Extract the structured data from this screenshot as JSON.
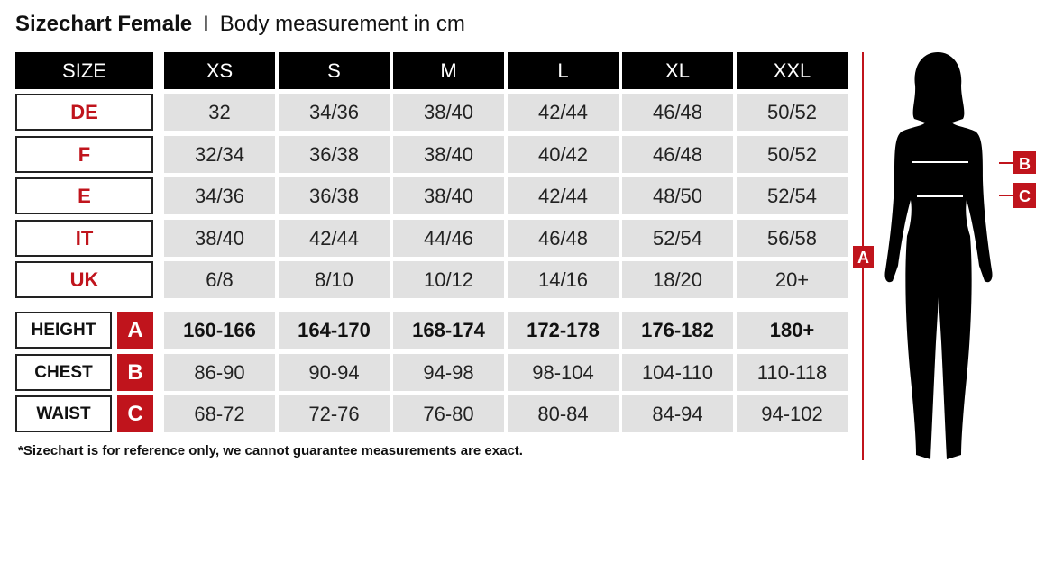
{
  "title": {
    "main": "Sizechart Female",
    "separator": "I",
    "subtitle": "Body measurement in cm"
  },
  "header": {
    "label": "SIZE",
    "sizes": [
      "XS",
      "S",
      "M",
      "L",
      "XL",
      "XXL"
    ]
  },
  "size_rows": [
    {
      "label": "DE",
      "values": [
        "32",
        "34/36",
        "38/40",
        "42/44",
        "46/48",
        "50/52"
      ]
    },
    {
      "label": "F",
      "values": [
        "32/34",
        "36/38",
        "38/40",
        "40/42",
        "46/48",
        "50/52"
      ]
    },
    {
      "label": "E",
      "values": [
        "34/36",
        "36/38",
        "38/40",
        "42/44",
        "48/50",
        "52/54"
      ]
    },
    {
      "label": "IT",
      "values": [
        "38/40",
        "42/44",
        "44/46",
        "46/48",
        "52/54",
        "56/58"
      ]
    },
    {
      "label": "UK",
      "values": [
        "6/8",
        "8/10",
        "10/12",
        "14/16",
        "18/20",
        "20+"
      ]
    }
  ],
  "measure_rows": [
    {
      "label": "HEIGHT",
      "badge": "A",
      "values": [
        "160-166",
        "164-170",
        "168-174",
        "172-178",
        "176-182",
        "180+"
      ]
    },
    {
      "label": "CHEST",
      "badge": "B",
      "values": [
        "86-90",
        "90-94",
        "94-98",
        "98-104",
        "104-110",
        "110-118"
      ]
    },
    {
      "label": "WAIST",
      "badge": "C",
      "values": [
        "68-72",
        "72-76",
        "76-80",
        "80-84",
        "84-94",
        "94-102"
      ]
    }
  ],
  "figure": {
    "height_marker": "A",
    "chest_marker": "B",
    "waist_marker": "C"
  },
  "footnote": "*Sizechart is for reference only, we cannot guarantee measurements are exact.",
  "colors": {
    "accent": "#c0141c",
    "header": "#000000",
    "cell": "#e1e1e1"
  }
}
